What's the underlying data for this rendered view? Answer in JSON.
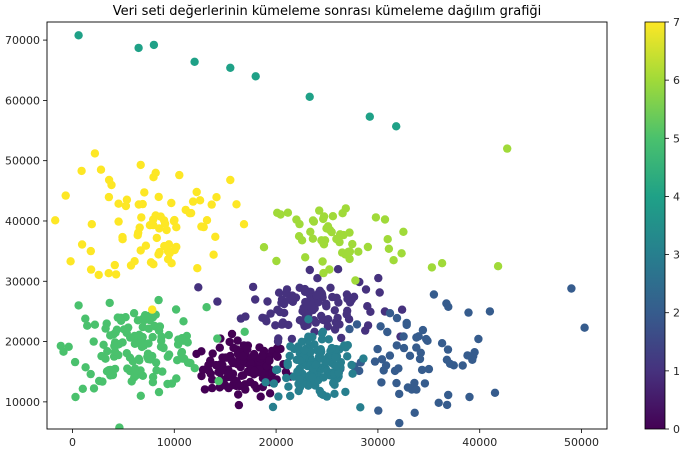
{
  "chart_data": {
    "type": "scatter",
    "title": "Veri seti değerlerinin kümeleme sonrası kümeleme dağılım grafiği",
    "xlabel": "",
    "ylabel": "",
    "xlim": [
      -2500,
      52500
    ],
    "ylim": [
      5500,
      73000
    ],
    "x_ticks": [
      0,
      10000,
      20000,
      30000,
      40000,
      50000
    ],
    "y_ticks": [
      10000,
      20000,
      30000,
      40000,
      50000,
      60000,
      70000
    ],
    "grid": false,
    "colorbar": {
      "min": 0,
      "max": 7,
      "ticks": [
        0,
        1,
        2,
        3,
        4,
        5,
        6,
        7
      ],
      "colormap": "viridis"
    },
    "clusters": [
      {
        "label": 0,
        "color": "#440154",
        "center": [
          17000,
          15500
        ],
        "spread": [
          2100,
          2300
        ],
        "count": 130
      },
      {
        "label": 1,
        "color": "#46327e",
        "center": [
          23500,
          26000
        ],
        "spread": [
          3200,
          2600
        ],
        "count": 115
      },
      {
        "label": 2,
        "color": "#365c8d",
        "center": [
          33500,
          17000
        ],
        "spread": [
          3600,
          4000
        ],
        "count": 60
      },
      {
        "label": 3,
        "color": "#277f8e",
        "center": [
          24000,
          15500
        ],
        "spread": [
          1900,
          2500
        ],
        "count": 150
      },
      {
        "label": 4,
        "color": "#1fa187",
        "center": [
          20000,
          65000
        ],
        "spread": [
          0,
          0
        ],
        "count": 0
      },
      {
        "label": 5,
        "color": "#4ac16d",
        "center": [
          6500,
          19000
        ],
        "spread": [
          3300,
          3300
        ],
        "count": 140
      },
      {
        "label": 6,
        "color": "#a0da39",
        "center": [
          25500,
          37000
        ],
        "spread": [
          3200,
          3800
        ],
        "count": 50
      },
      {
        "label": 7,
        "color": "#fde725",
        "center": [
          8500,
          39000
        ],
        "spread": [
          3500,
          4800
        ],
        "count": 75
      }
    ],
    "extra_points": [
      {
        "cluster": 4,
        "x": 600,
        "y": 70800
      },
      {
        "cluster": 4,
        "x": 6500,
        "y": 68700
      },
      {
        "cluster": 4,
        "x": 8000,
        "y": 69200
      },
      {
        "cluster": 4,
        "x": 12000,
        "y": 66400
      },
      {
        "cluster": 4,
        "x": 15500,
        "y": 65400
      },
      {
        "cluster": 4,
        "x": 18000,
        "y": 64000
      },
      {
        "cluster": 4,
        "x": 23300,
        "y": 60600
      },
      {
        "cluster": 4,
        "x": 29200,
        "y": 57300
      },
      {
        "cluster": 4,
        "x": 31800,
        "y": 55700
      },
      {
        "cluster": 6,
        "x": 42700,
        "y": 52000
      },
      {
        "cluster": 6,
        "x": 41800,
        "y": 32500
      },
      {
        "cluster": 6,
        "x": 29800,
        "y": 40600
      },
      {
        "cluster": 6,
        "x": 32500,
        "y": 38200
      },
      {
        "cluster": 6,
        "x": 35300,
        "y": 32300
      },
      {
        "cluster": 6,
        "x": 36300,
        "y": 33000
      },
      {
        "cluster": 2,
        "x": 49000,
        "y": 28800
      },
      {
        "cluster": 2,
        "x": 50300,
        "y": 22300
      },
      {
        "cluster": 2,
        "x": 41000,
        "y": 25000
      },
      {
        "cluster": 2,
        "x": 41500,
        "y": 11500
      },
      {
        "cluster": 2,
        "x": 38800,
        "y": 17700
      },
      {
        "cluster": 2,
        "x": 39000,
        "y": 10800
      },
      {
        "cluster": 2,
        "x": 36800,
        "y": 9500
      },
      {
        "cluster": 2,
        "x": 35500,
        "y": 27800
      },
      {
        "cluster": 2,
        "x": 38900,
        "y": 24800
      },
      {
        "cluster": 5,
        "x": 300,
        "y": 10800
      },
      {
        "cluster": 5,
        "x": 600,
        "y": 26000
      },
      {
        "cluster": 7,
        "x": 900,
        "y": 48300
      },
      {
        "cluster": 7,
        "x": 2200,
        "y": 51200
      },
      {
        "cluster": 7,
        "x": 2800,
        "y": 48500
      },
      {
        "cluster": 7,
        "x": 3600,
        "y": 46800
      },
      {
        "cluster": 7,
        "x": 6700,
        "y": 49300
      },
      {
        "cluster": 7,
        "x": 1800,
        "y": 35000
      },
      {
        "cluster": 7,
        "x": 15500,
        "y": 46800
      },
      {
        "cluster": 7,
        "x": 12200,
        "y": 44800
      }
    ]
  }
}
